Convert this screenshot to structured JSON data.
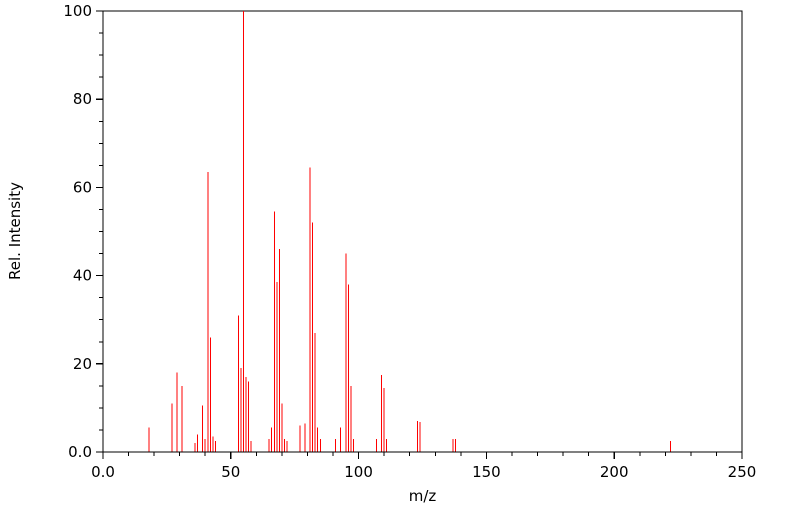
{
  "chart_data": {
    "type": "bar",
    "subtype": "mass-spectrum-stick-plot",
    "title": "",
    "xlabel": "m/z",
    "ylabel": "Rel. Intensity",
    "xlim": [
      0,
      250
    ],
    "ylim": [
      0,
      100
    ],
    "grid": false,
    "legend": "none",
    "line_color": "#ff0000",
    "axis_color": "#000000",
    "x_minor_step": 10,
    "y_minor_step": 5,
    "x_ticks": [
      {
        "value": 0,
        "label": "0.0"
      },
      {
        "value": 50,
        "label": "50"
      },
      {
        "value": 100,
        "label": "100"
      },
      {
        "value": 150,
        "label": "150"
      },
      {
        "value": 200,
        "label": "200"
      },
      {
        "value": 250,
        "label": "250"
      }
    ],
    "y_ticks": [
      {
        "value": 0,
        "label": "0.0"
      },
      {
        "value": 20,
        "label": "20"
      },
      {
        "value": 40,
        "label": "40"
      },
      {
        "value": 60,
        "label": "60"
      },
      {
        "value": 80,
        "label": "80"
      },
      {
        "value": 100,
        "label": "100"
      }
    ],
    "peaks": [
      [
        18,
        5.5
      ],
      [
        27,
        11
      ],
      [
        29,
        18
      ],
      [
        31,
        15
      ],
      [
        36,
        2
      ],
      [
        37,
        4
      ],
      [
        39,
        10.5
      ],
      [
        40,
        3
      ],
      [
        41,
        63.5
      ],
      [
        42,
        26
      ],
      [
        43,
        3.5
      ],
      [
        44,
        2.5
      ],
      [
        53,
        31
      ],
      [
        54,
        19
      ],
      [
        55,
        100
      ],
      [
        56,
        17
      ],
      [
        57,
        16
      ],
      [
        58,
        2.5
      ],
      [
        65,
        3
      ],
      [
        66,
        5.5
      ],
      [
        67,
        54.5
      ],
      [
        68,
        38.5
      ],
      [
        69,
        46
      ],
      [
        70,
        11
      ],
      [
        71,
        3
      ],
      [
        72,
        2.5
      ],
      [
        77,
        6
      ],
      [
        79,
        6.5
      ],
      [
        81,
        64.5
      ],
      [
        82,
        52
      ],
      [
        83,
        27
      ],
      [
        84,
        5.5
      ],
      [
        85,
        3
      ],
      [
        91,
        3
      ],
      [
        93,
        5.5
      ],
      [
        95,
        45
      ],
      [
        96,
        38
      ],
      [
        97,
        15
      ],
      [
        98,
        3
      ],
      [
        107,
        3
      ],
      [
        109,
        17.5
      ],
      [
        110,
        14.5
      ],
      [
        111,
        3
      ],
      [
        123,
        7
      ],
      [
        124,
        6.8
      ],
      [
        137,
        3
      ],
      [
        138,
        3
      ],
      [
        222,
        2.5
      ]
    ]
  }
}
